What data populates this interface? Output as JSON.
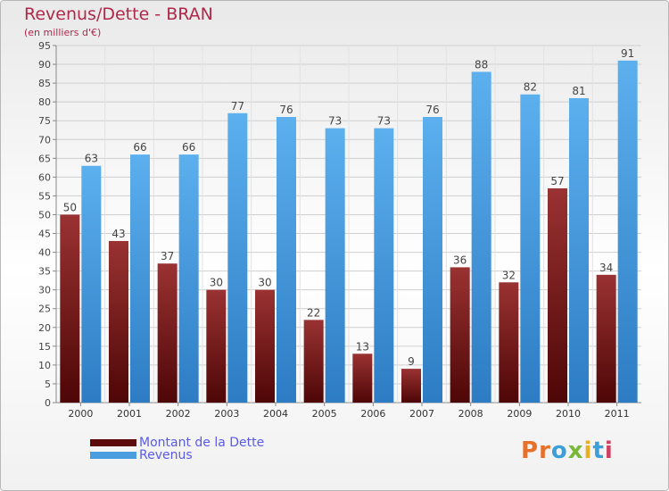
{
  "header": {
    "title": "Revenus/Dette - BRAN",
    "subtitle": "(en milliers d'€)"
  },
  "chart_data": {
    "type": "bar",
    "categories": [
      "2000",
      "2001",
      "2002",
      "2003",
      "2004",
      "2005",
      "2006",
      "2007",
      "2008",
      "2009",
      "2010",
      "2011"
    ],
    "series": [
      {
        "name": "Montant de la Dette",
        "color": "#7a1a1a",
        "values": [
          50,
          43,
          37,
          30,
          30,
          22,
          13,
          9,
          36,
          32,
          57,
          34
        ]
      },
      {
        "name": "Revenus",
        "color": "#4a9ee0",
        "values": [
          63,
          66,
          66,
          77,
          76,
          73,
          73,
          76,
          88,
          82,
          81,
          91
        ]
      }
    ],
    "ylim": [
      0,
      95
    ],
    "ytick_step": 5,
    "grid": true
  },
  "legend": {
    "items": [
      {
        "label": "Montant de la Dette",
        "color": "#5c0a0a"
      },
      {
        "label": "Revenus",
        "color": "#4a9ee0"
      }
    ]
  },
  "logo": {
    "text": "Proxiti",
    "colors": [
      "#e8702a",
      "#e8702a",
      "#3c9fd8",
      "#7ab83a",
      "#e8b020",
      "#3c9fd8",
      "#d04060"
    ]
  }
}
